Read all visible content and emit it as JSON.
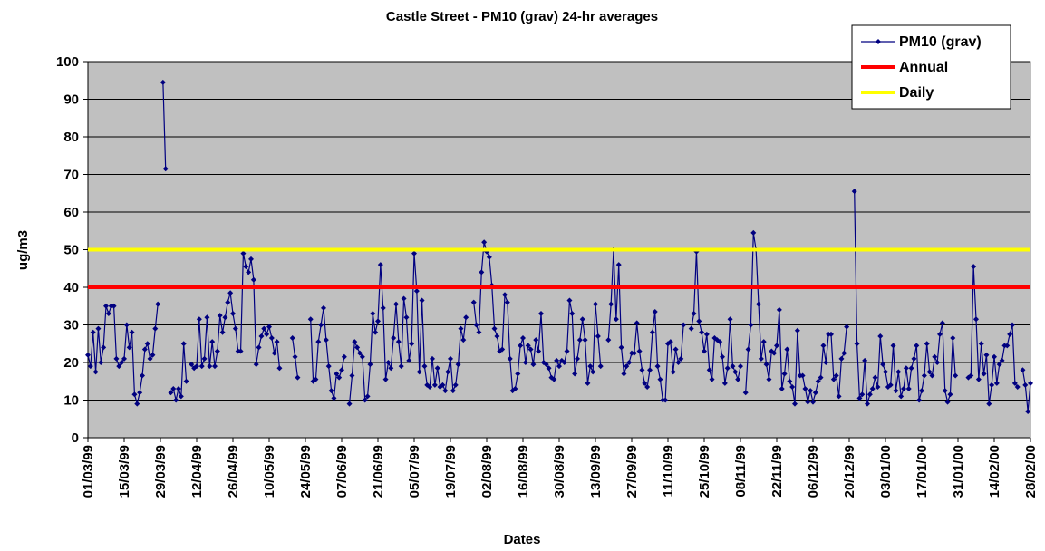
{
  "chart_data": {
    "type": "line",
    "title": "Castle Street - PM10 (grav) 24-hr averages",
    "x_label": "Dates",
    "y_label": "ug/m3",
    "categories": [
      "01/03/99",
      null,
      null,
      null,
      null,
      null,
      null,
      null,
      null,
      null,
      null,
      null,
      null,
      null,
      "15/03/99",
      null,
      null,
      null,
      null,
      null,
      null,
      null,
      null,
      null,
      null,
      null,
      null,
      null,
      "29/03/99",
      null,
      null,
      null,
      null,
      null,
      null,
      null,
      null,
      null,
      null,
      null,
      null,
      null,
      "12/04/99",
      null,
      null,
      null,
      null,
      null,
      null,
      null,
      null,
      null,
      null,
      null,
      null,
      null,
      "26/04/99",
      null,
      null,
      null,
      null,
      null,
      null,
      null,
      null,
      null,
      null,
      null,
      null,
      null,
      "10/05/99",
      null,
      null,
      null,
      null,
      null,
      null,
      null,
      null,
      null,
      null,
      null,
      null,
      null,
      "24/05/99",
      null,
      null,
      null,
      null,
      null,
      null,
      null,
      null,
      null,
      null,
      null,
      null,
      null,
      "07/06/99",
      null,
      null,
      null,
      null,
      null,
      null,
      null,
      null,
      null,
      null,
      null,
      null,
      null,
      "21/06/99",
      null,
      null,
      null,
      null,
      null,
      null,
      null,
      null,
      null,
      null,
      null,
      null,
      null,
      "05/07/99",
      null,
      null,
      null,
      null,
      null,
      null,
      null,
      null,
      null,
      null,
      null,
      null,
      null,
      "19/07/99",
      null,
      null,
      null,
      null,
      null,
      null,
      null,
      null,
      null,
      null,
      null,
      null,
      null,
      "02/08/99",
      null,
      null,
      null,
      null,
      null,
      null,
      null,
      null,
      null,
      null,
      null,
      null,
      null,
      "16/08/99",
      null,
      null,
      null,
      null,
      null,
      null,
      null,
      null,
      null,
      null,
      null,
      null,
      null,
      "30/08/99",
      null,
      null,
      null,
      null,
      null,
      null,
      null,
      null,
      null,
      null,
      null,
      null,
      null,
      "13/09/99",
      null,
      null,
      null,
      null,
      null,
      null,
      null,
      null,
      null,
      null,
      null,
      null,
      null,
      "27/09/99",
      null,
      null,
      null,
      null,
      null,
      null,
      null,
      null,
      null,
      null,
      null,
      null,
      null,
      "11/10/99",
      null,
      null,
      null,
      null,
      null,
      null,
      null,
      null,
      null,
      null,
      null,
      null,
      null,
      "25/10/99",
      null,
      null,
      null,
      null,
      null,
      null,
      null,
      null,
      null,
      null,
      null,
      null,
      null,
      "08/11/99",
      null,
      null,
      null,
      null,
      null,
      null,
      null,
      null,
      null,
      null,
      null,
      null,
      null,
      "22/11/99",
      null,
      null,
      null,
      null,
      null,
      null,
      null,
      null,
      null,
      null,
      null,
      null,
      null,
      "06/12/99",
      null,
      null,
      null,
      null,
      null,
      null,
      null,
      null,
      null,
      null,
      null,
      null,
      null,
      "20/12/99",
      null,
      null,
      null,
      null,
      null,
      null,
      null,
      null,
      null,
      null,
      null,
      null,
      null,
      "03/01/00",
      null,
      null,
      null,
      null,
      null,
      null,
      null,
      null,
      null,
      null,
      null,
      null,
      null,
      "17/01/00",
      null,
      null,
      null,
      null,
      null,
      null,
      null,
      null,
      null,
      null,
      null,
      null,
      null,
      "31/01/00",
      null,
      null,
      null,
      null,
      null,
      null,
      null,
      null,
      null,
      null,
      null,
      null,
      null,
      "14/02/00",
      null,
      null,
      null,
      null,
      null,
      null,
      null,
      null,
      null,
      null,
      null,
      null,
      null,
      "28/02/00"
    ],
    "series": [
      {
        "name": "PM10 (grav)",
        "color": "#000080",
        "values": [
          22,
          19,
          28,
          17.5,
          29,
          20,
          24,
          35,
          33,
          35,
          35,
          21,
          19,
          20,
          21,
          30,
          24,
          28,
          11.5,
          9,
          12,
          16.5,
          23.5,
          25,
          21,
          22,
          29,
          35.5,
          null,
          94.5,
          71.5,
          null,
          12,
          13,
          10,
          13,
          11,
          25,
          15,
          null,
          19.5,
          18.5,
          19,
          31.5,
          19,
          21,
          32,
          19,
          25.5,
          19,
          23,
          32.5,
          28,
          32,
          36,
          38.5,
          33,
          29,
          23,
          23,
          49,
          45.5,
          44,
          47.5,
          42,
          19.5,
          24,
          27,
          29,
          27.5,
          29.5,
          26.5,
          22.5,
          25.5,
          18.5,
          null,
          null,
          null,
          null,
          26.5,
          21.5,
          16,
          null,
          null,
          null,
          null,
          31.5,
          15,
          15.5,
          25.5,
          30,
          34.5,
          26,
          19,
          12.5,
          10.5,
          17,
          16,
          18,
          21.5,
          null,
          9,
          16.5,
          25.5,
          24,
          22.5,
          21.5,
          10,
          11,
          19.5,
          33,
          28,
          31,
          46,
          34.5,
          15.5,
          20,
          18.5,
          26.5,
          35.5,
          25.5,
          19,
          37,
          32,
          20.5,
          25,
          49,
          39,
          17.5,
          36.5,
          19,
          14,
          13.5,
          21,
          14,
          18.5,
          13.5,
          14,
          12.5,
          17.5,
          21,
          12.5,
          14,
          19.5,
          29,
          26,
          32,
          null,
          null,
          36,
          30,
          28,
          44,
          52,
          49.5,
          48,
          40.5,
          29,
          27,
          23,
          23.5,
          38,
          36,
          21,
          12.5,
          13,
          17,
          24.5,
          26.5,
          20,
          24.5,
          23.5,
          19.5,
          26,
          23,
          33,
          20,
          19.5,
          18.5,
          16,
          15.5,
          20.5,
          19,
          20.5,
          20,
          23,
          36.5,
          33,
          17,
          21,
          26,
          31.5,
          26,
          14.5,
          19,
          17.5,
          35.5,
          27,
          19,
          null,
          null,
          26,
          35.5,
          50,
          31.5,
          46,
          24,
          17,
          19,
          20,
          22.5,
          22.5,
          30.5,
          23,
          18,
          14.5,
          13.5,
          18,
          28,
          33.5,
          19,
          15.5,
          10,
          10,
          25,
          25.5,
          17.5,
          23.5,
          20,
          21,
          30,
          null,
          null,
          29,
          33,
          49.5,
          31,
          28,
          23,
          27.5,
          18,
          15.5,
          26.5,
          26,
          25.5,
          21.5,
          14.5,
          18.5,
          31.5,
          19,
          17.5,
          15.5,
          19,
          null,
          12,
          23.5,
          30,
          54.5,
          50,
          35.5,
          21,
          25.5,
          19.5,
          15.5,
          23,
          22.5,
          24.5,
          34,
          13,
          17,
          23.5,
          15,
          13.5,
          9,
          28.5,
          16.5,
          16.5,
          13,
          9.5,
          12.5,
          9.5,
          12,
          15,
          16,
          24.5,
          20,
          27.5,
          27.5,
          15.5,
          16.5,
          11,
          21,
          22.5,
          29.5,
          null,
          null,
          65.5,
          25,
          10.5,
          11.5,
          20.5,
          9,
          11.5,
          13,
          16,
          13.5,
          27,
          19.5,
          17.5,
          13.5,
          14,
          24.5,
          12.5,
          17.5,
          11,
          13,
          18.5,
          13,
          18.5,
          21,
          24.5,
          10,
          12.5,
          16.5,
          25,
          17.5,
          16.5,
          21.5,
          20,
          27.5,
          30.5,
          12.5,
          9.5,
          11.5,
          26.5,
          16.5,
          null,
          null,
          null,
          null,
          16,
          16.5,
          45.5,
          31.5,
          15.5,
          25,
          17,
          22,
          9,
          14,
          21.5,
          14.5,
          19.5,
          20.5,
          24.5,
          24.5,
          27.5,
          30,
          14.5,
          13.5,
          null,
          18,
          14,
          7,
          14.5
        ]
      },
      {
        "name": "Annual",
        "color": "#ff0000",
        "level": 40
      },
      {
        "name": "Daily",
        "color": "#ffff00",
        "level": 50
      }
    ],
    "ylim": [
      0,
      100
    ],
    "yticks": [
      0,
      10,
      20,
      30,
      40,
      50,
      60,
      70,
      80,
      90,
      100
    ],
    "grid": true,
    "legend": "top-right"
  }
}
